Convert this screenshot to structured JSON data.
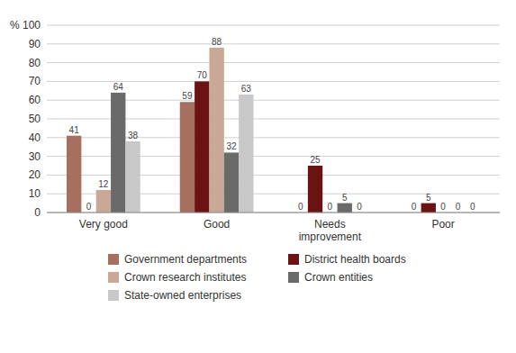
{
  "chart_data": {
    "type": "bar",
    "categories": [
      "Very good",
      "Good",
      "Needs\nimprovement",
      "Poor"
    ],
    "series": [
      {
        "name": "Government departments",
        "color": "#A67060",
        "values": [
          41,
          59,
          0,
          0
        ]
      },
      {
        "name": "District health boards",
        "color": "#6B1212",
        "values": [
          0,
          70,
          25,
          5
        ]
      },
      {
        "name": "Crown research institutes",
        "color": "#C9A898",
        "values": [
          12,
          88,
          0,
          0
        ]
      },
      {
        "name": "Crown entities",
        "color": "#6A6A6A",
        "values": [
          64,
          32,
          5,
          0
        ]
      },
      {
        "name": "State-owned enterprises",
        "color": "#C8C8C8",
        "values": [
          38,
          63,
          0,
          0
        ]
      }
    ],
    "ylim": [
      0,
      100
    ],
    "yticks": [
      0,
      10,
      20,
      30,
      40,
      50,
      60,
      70,
      80,
      90,
      {
        "value": 100,
        "label": "% 100"
      }
    ],
    "grid": true,
    "data_labels": true,
    "legend": "bottom"
  }
}
